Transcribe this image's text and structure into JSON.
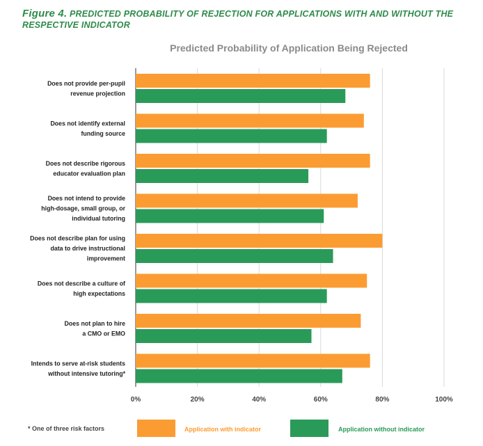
{
  "figure": {
    "label": "Figure 4.",
    "caption": "predicted probability of rejection for applications with and without the respective indicator"
  },
  "footnote": "* One of three risk factors",
  "colors": {
    "with": "#fb9c33",
    "without": "#2a9a59",
    "title": "#2e8b4a",
    "chart_title": "#8a8a8a",
    "grid": "#d9d9d9",
    "axis": "#555555"
  },
  "chart_data": {
    "type": "bar",
    "orientation": "horizontal",
    "title": "Predicted Probability of Application Being Rejected",
    "xlabel": "",
    "ylabel": "",
    "xlim": [
      0,
      100
    ],
    "xticks": [
      0,
      20,
      40,
      60,
      80,
      100
    ],
    "xtick_labels": [
      "0%",
      "20%",
      "40%",
      "60%",
      "80%",
      "100%"
    ],
    "grid": true,
    "categories": [
      [
        "Does not provide per-pupil",
        "revenue projection"
      ],
      [
        "Does not identify external",
        "funding source"
      ],
      [
        "Does not describe rigorous",
        "educator evaluation plan"
      ],
      [
        "Does not intend to provide",
        "high-dosage, small group, or",
        "individual tutoring"
      ],
      [
        "Does not describe plan for using",
        "data to drive instructional",
        "improvement"
      ],
      [
        "Does not describe a culture of",
        "high expectations"
      ],
      [
        "Does not plan to hire",
        "a CMO or EMO"
      ],
      [
        "Intends to serve at-risk students",
        "without intensive tutoring*"
      ]
    ],
    "series": [
      {
        "name": "Application with indicator",
        "values": [
          76,
          74,
          76,
          72,
          80,
          75,
          73,
          76
        ]
      },
      {
        "name": "Application without indicator",
        "values": [
          68,
          62,
          56,
          61,
          64,
          62,
          57,
          67
        ]
      }
    ],
    "legend_position": "bottom"
  }
}
